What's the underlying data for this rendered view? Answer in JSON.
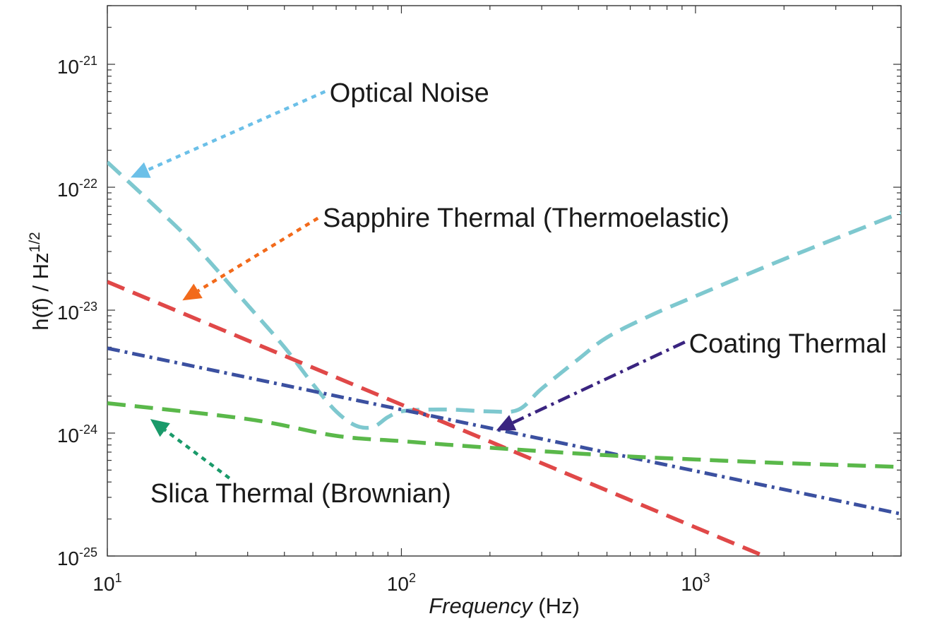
{
  "chart_data": {
    "type": "line",
    "x_scale": "log",
    "y_scale": "log",
    "xlim": [
      10,
      5000
    ],
    "ylim": [
      1e-25,
      3e-21
    ],
    "xlabel_italic": "Frequency",
    "xlabel_unit": " (Hz)",
    "ylabel": "h(f) / Hz",
    "ylabel_sup": "1/2",
    "grid": false,
    "x_ticks": [
      {
        "value": 10,
        "base": "10",
        "exp": "1"
      },
      {
        "value": 100,
        "base": "10",
        "exp": "2"
      },
      {
        "value": 1000,
        "base": "10",
        "exp": "3"
      }
    ],
    "y_ticks": [
      {
        "value": 1e-25,
        "base": "10",
        "exp": "-25"
      },
      {
        "value": 1e-24,
        "base": "10",
        "exp": "-24"
      },
      {
        "value": 1e-23,
        "base": "10",
        "exp": "-23"
      },
      {
        "value": 1e-22,
        "base": "10",
        "exp": "-22"
      },
      {
        "value": 1e-21,
        "base": "10",
        "exp": "-21"
      }
    ],
    "series": [
      {
        "color": "#7ec8cf",
        "dash": "dashed",
        "x": [
          10,
          15,
          20,
          30,
          40,
          50,
          60,
          70,
          80,
          90,
          100,
          120,
          150,
          200,
          250,
          300,
          400,
          500,
          700,
          1000,
          2000,
          5000
        ],
        "y": [
          1.6e-22,
          6.5e-23,
          3.3e-23,
          1.1e-23,
          5e-24,
          2.5e-24,
          1.5e-24,
          1.15e-24,
          1.12e-24,
          1.35e-24,
          1.5e-24,
          1.55e-24,
          1.55e-24,
          1.5e-24,
          1.55e-24,
          2.3e-24,
          4e-24,
          6e-24,
          9e-24,
          1.3e-23,
          2.6e-23,
          6.2e-23
        ]
      },
      {
        "color": "#e04848",
        "dash": "dashed",
        "x": [
          10,
          1800
        ],
        "y": [
          1.7e-23,
          9.5e-26
        ]
      },
      {
        "color": "#3b50a0",
        "dash": "dashdot",
        "x": [
          10,
          5000
        ],
        "y": [
          4.9e-24,
          2.2e-25
        ]
      },
      {
        "color": "#5ab84a",
        "dash": "dashed",
        "x": [
          10,
          30,
          60,
          100,
          200,
          500,
          1000,
          2000,
          5000
        ],
        "y": [
          1.75e-24,
          1.3e-24,
          9.5e-25,
          8.6e-25,
          7.6e-25,
          6.6e-25,
          6.1e-25,
          5.7e-25,
          5.3e-25
        ]
      }
    ],
    "annotations": [
      {
        "text": "Optical Noise",
        "color": "#6cc0e8",
        "dash": "dotted",
        "from": [
          55,
          6e-22
        ],
        "to": [
          12,
          1.2e-22
        ],
        "label_at": [
          57,
          5.8e-22
        ]
      },
      {
        "text": "Sapphire Thermal (Thermoelastic)",
        "color": "#f26a1b",
        "dash": "dotted",
        "from": [
          52,
          5.6e-23
        ],
        "to": [
          18,
          1.2e-23
        ],
        "label_at": [
          54,
          5.6e-23
        ]
      },
      {
        "text": "Coating Thermal",
        "color": "#3a2480",
        "dash": "dashdot",
        "from": [
          920,
          5.5e-24
        ],
        "to": [
          210,
          1.05e-24
        ],
        "label_at": [
          950,
          5.3e-24
        ]
      },
      {
        "text": "Slica Thermal (Brownian)",
        "color": "#1a9a6a",
        "dash": "dotted",
        "from": [
          26,
          4.3e-25
        ],
        "to": [
          14,
          1.3e-24
        ],
        "label_at": [
          14,
          3.2e-25
        ]
      }
    ]
  }
}
